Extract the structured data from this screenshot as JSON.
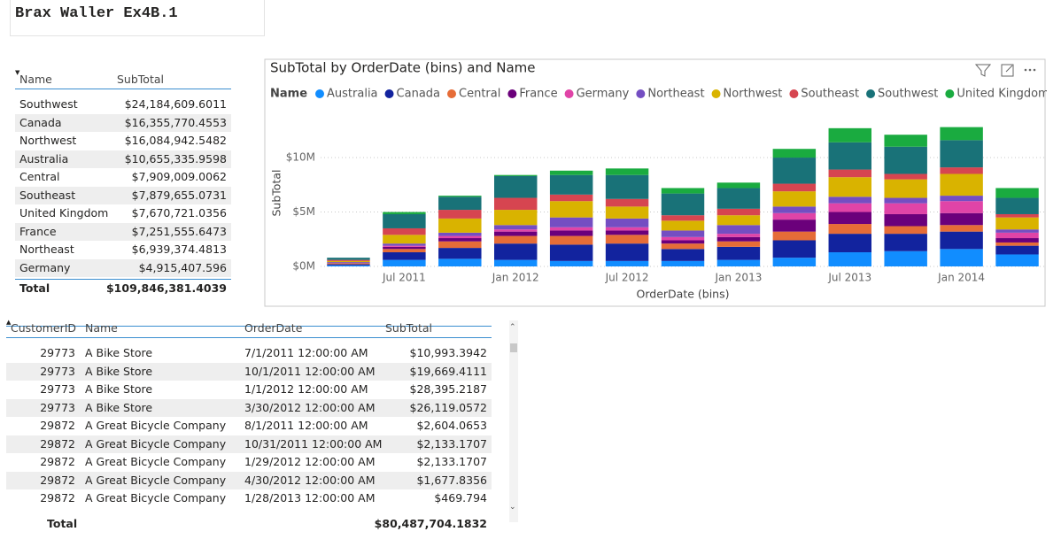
{
  "title": "Brax Waller Ex4B.1",
  "summary_table": {
    "headers": [
      "Name",
      "SubTotal"
    ],
    "rows": [
      [
        "Southwest",
        "$24,184,609.6011"
      ],
      [
        "Canada",
        "$16,355,770.4553"
      ],
      [
        "Northwest",
        "$16,084,942.5482"
      ],
      [
        "Australia",
        "$10,655,335.9598"
      ],
      [
        "Central",
        "$7,909,009.0062"
      ],
      [
        "Southeast",
        "$7,879,655.0731"
      ],
      [
        "United Kingdom",
        "$7,670,721.0356"
      ],
      [
        "France",
        "$7,251,555.6473"
      ],
      [
        "Northeast",
        "$6,939,374.4813"
      ],
      [
        "Germany",
        "$4,915,407.596"
      ]
    ],
    "total": [
      "Total",
      "$109,846,381.4039"
    ]
  },
  "chart_data": {
    "type": "stacked-bar",
    "title": "SubTotal by OrderDate (bins) and Name",
    "legend_title": "Name",
    "x_label": "OrderDate (bins)",
    "y_label": "SubTotal",
    "categories": [
      null,
      "Jul 2011",
      null,
      "Jan 2012",
      null,
      "Jul 2012",
      null,
      "Jan 2013",
      null,
      "Jul 2013",
      null,
      "Jan 2014",
      null
    ],
    "ylim": [
      0,
      13500000
    ],
    "yticks": [
      {
        "value": 0,
        "label": "$0M"
      },
      {
        "value": 5000000,
        "label": "$5M"
      },
      {
        "value": 10000000,
        "label": "$10M"
      }
    ],
    "grid": true,
    "legend": "top",
    "series": [
      {
        "name": "Australia",
        "color": "#118DFF",
        "values": [
          100000,
          600000,
          700000,
          600000,
          500000,
          500000,
          500000,
          600000,
          800000,
          1300000,
          1400000,
          1600000,
          1100000
        ]
      },
      {
        "name": "Canada",
        "color": "#12239E",
        "values": [
          100000,
          700000,
          1000000,
          1500000,
          1500000,
          1600000,
          1100000,
          1200000,
          1600000,
          1700000,
          1600000,
          1600000,
          800000
        ]
      },
      {
        "name": "Central",
        "color": "#E66C37",
        "values": [
          100000,
          300000,
          600000,
          700000,
          800000,
          800000,
          500000,
          500000,
          800000,
          900000,
          700000,
          600000,
          300000
        ]
      },
      {
        "name": "France",
        "color": "#6B007B",
        "values": [
          0,
          200000,
          300000,
          400000,
          500000,
          400000,
          300000,
          400000,
          1100000,
          1100000,
          1100000,
          1100000,
          400000
        ]
      },
      {
        "name": "Germany",
        "color": "#E044A7",
        "values": [
          0,
          100000,
          200000,
          200000,
          300000,
          300000,
          300000,
          300000,
          600000,
          800000,
          1000000,
          1100000,
          500000
        ]
      },
      {
        "name": "Northeast",
        "color": "#744EC2",
        "values": [
          100000,
          200000,
          300000,
          400000,
          900000,
          800000,
          600000,
          800000,
          600000,
          600000,
          500000,
          500000,
          300000
        ]
      },
      {
        "name": "Northwest",
        "color": "#D9B300",
        "values": [
          100000,
          800000,
          1300000,
          1400000,
          1500000,
          1100000,
          900000,
          900000,
          1400000,
          1800000,
          1700000,
          2000000,
          1100000
        ]
      },
      {
        "name": "Southeast",
        "color": "#D64550",
        "values": [
          100000,
          600000,
          800000,
          1100000,
          600000,
          700000,
          500000,
          600000,
          700000,
          700000,
          500000,
          600000,
          300000
        ]
      },
      {
        "name": "Southwest",
        "color": "#197278",
        "values": [
          200000,
          1300000,
          1200000,
          2000000,
          1800000,
          2200000,
          2000000,
          1900000,
          2400000,
          2500000,
          2500000,
          2500000,
          1500000
        ]
      },
      {
        "name": "United Kingdom",
        "color": "#1AAB40",
        "values": [
          0,
          200000,
          100000,
          100000,
          400000,
          600000,
          500000,
          500000,
          800000,
          1300000,
          1100000,
          1200000,
          900000
        ]
      }
    ]
  },
  "detail_table": {
    "headers": [
      "CustomerID",
      "Name",
      "OrderDate",
      "SubTotal"
    ],
    "rows": [
      [
        "29773",
        "A Bike Store",
        "7/1/2011 12:00:00 AM",
        "$10,993.3942"
      ],
      [
        "29773",
        "A Bike Store",
        "10/1/2011 12:00:00 AM",
        "$19,669.4111"
      ],
      [
        "29773",
        "A Bike Store",
        "1/1/2012 12:00:00 AM",
        "$28,395.2187"
      ],
      [
        "29773",
        "A Bike Store",
        "3/30/2012 12:00:00 AM",
        "$26,119.0572"
      ],
      [
        "29872",
        "A Great Bicycle Company",
        "8/1/2011 12:00:00 AM",
        "$2,604.0653"
      ],
      [
        "29872",
        "A Great Bicycle Company",
        "10/31/2011 12:00:00 AM",
        "$2,133.1707"
      ],
      [
        "29872",
        "A Great Bicycle Company",
        "1/29/2012 12:00:00 AM",
        "$2,133.1707"
      ],
      [
        "29872",
        "A Great Bicycle Company",
        "4/30/2012 12:00:00 AM",
        "$1,677.8356"
      ],
      [
        "29872",
        "A Great Bicycle Company",
        "1/28/2013 12:00:00 AM",
        "$469.794"
      ]
    ],
    "total": [
      "Total",
      "$80,487,704.1832"
    ]
  }
}
